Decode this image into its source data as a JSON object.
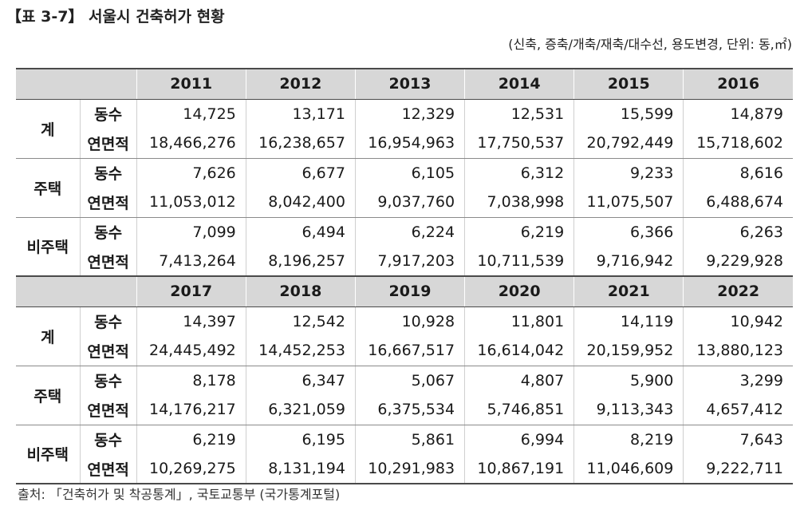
{
  "title": "【표 3-7】 서울시 건축허가 현황",
  "unit": "(신축, 증축/개축/재축/대수선, 용도변경, 단위: 동,㎡)",
  "sections": [
    {
      "years": [
        "2011",
        "2012",
        "2013",
        "2014",
        "2015",
        "2016"
      ],
      "groups": [
        {
          "label": "계",
          "rows": [
            {
              "label": "동수",
              "values": [
                "14,725",
                "13,171",
                "12,329",
                "12,531",
                "15,599",
                "14,879"
              ]
            },
            {
              "label": "연면적",
              "values": [
                "18,466,276",
                "16,238,657",
                "16,954,963",
                "17,750,537",
                "20,792,449",
                "15,718,602"
              ]
            }
          ]
        },
        {
          "label": "주택",
          "rows": [
            {
              "label": "동수",
              "values": [
                "7,626",
                "6,677",
                "6,105",
                "6,312",
                "9,233",
                "8,616"
              ]
            },
            {
              "label": "연면적",
              "values": [
                "11,053,012",
                "8,042,400",
                "9,037,760",
                "7,038,998",
                "11,075,507",
                "6,488,674"
              ]
            }
          ]
        },
        {
          "label": "비주택",
          "rows": [
            {
              "label": "동수",
              "values": [
                "7,099",
                "6,494",
                "6,224",
                "6,219",
                "6,366",
                "6,263"
              ]
            },
            {
              "label": "연면적",
              "values": [
                "7,413,264",
                "8,196,257",
                "7,917,203",
                "10,711,539",
                "9,716,942",
                "9,229,928"
              ]
            }
          ]
        }
      ]
    },
    {
      "years": [
        "2017",
        "2018",
        "2019",
        "2020",
        "2021",
        "2022"
      ],
      "groups": [
        {
          "label": "계",
          "rows": [
            {
              "label": "동수",
              "values": [
                "14,397",
                "12,542",
                "10,928",
                "11,801",
                "14,119",
                "10,942"
              ]
            },
            {
              "label": "연면적",
              "values": [
                "24,445,492",
                "14,452,253",
                "16,667,517",
                "16,614,042",
                "20,159,952",
                "13,880,123"
              ]
            }
          ]
        },
        {
          "label": "주택",
          "rows": [
            {
              "label": "동수",
              "values": [
                "8,178",
                "6,347",
                "5,067",
                "4,807",
                "5,900",
                "3,299"
              ]
            },
            {
              "label": "연면적",
              "values": [
                "14,176,217",
                "6,321,059",
                "6,375,534",
                "5,746,851",
                "9,113,343",
                "4,657,412"
              ]
            }
          ]
        },
        {
          "label": "비주택",
          "rows": [
            {
              "label": "동수",
              "values": [
                "6,219",
                "6,195",
                "5,861",
                "6,994",
                "8,219",
                "7,643"
              ]
            },
            {
              "label": "연면적",
              "values": [
                "10,269,275",
                "8,131,194",
                "10,291,983",
                "10,867,191",
                "11,046,609",
                "9,222,711"
              ]
            }
          ]
        }
      ]
    }
  ],
  "source": "출처: 「건축허가 및 착공통계」, 국토교통부 (국가통계포털)"
}
